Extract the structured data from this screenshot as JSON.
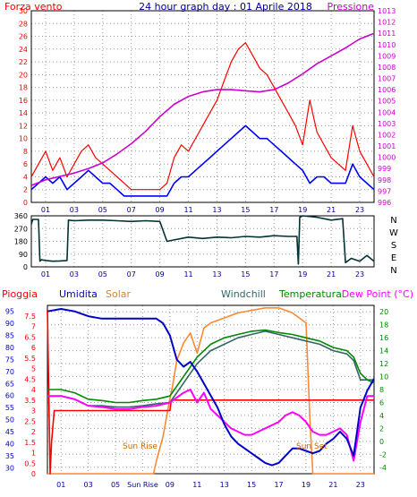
{
  "colors": {
    "frame": "#000000",
    "wind": "#ff0000",
    "wind_avg": "#0000ff",
    "pressure": "#cc00cc",
    "direction": "#003333",
    "rain": "#ff0000",
    "humidity": "#0000cc",
    "solar": "#ff8833",
    "windchill": "#336666",
    "temperature": "#008800",
    "dewpoint": "#ff00ff",
    "title": "#000099",
    "axis_text": "#000099"
  },
  "chart_data": [
    {
      "type": "line",
      "panel": "top",
      "title": "24 hour graph day : 01 Aprile 2018",
      "left_label": "Forza vento",
      "right_label": "Pressione",
      "x_ticks": [
        "01",
        "03",
        "05",
        "07",
        "09",
        "11",
        "13",
        "15",
        "17",
        "19",
        "21",
        "23"
      ],
      "x_range": [
        0,
        24
      ],
      "y_left_ticks": [
        "0",
        "2",
        "4",
        "6",
        "8",
        "10",
        "12",
        "14",
        "16",
        "18",
        "20",
        "22",
        "24",
        "26",
        "28",
        "30"
      ],
      "ylim_left": [
        0,
        30
      ],
      "y_right_ticks": [
        "996",
        "997",
        "998",
        "999",
        "1000",
        "1001",
        "1002",
        "1003",
        "1004",
        "1005",
        "1006",
        "1007",
        "1008",
        "1009",
        "1010",
        "1011",
        "1012",
        "1013"
      ],
      "ylim_right": [
        996,
        1013
      ],
      "grid": true,
      "series": [
        {
          "key": "wind",
          "x": [
            0,
            0.5,
            1,
            1.5,
            2,
            2.5,
            3,
            3.5,
            4,
            4.5,
            5,
            5.5,
            6,
            6.5,
            7,
            7.5,
            8,
            8.5,
            9,
            9.5,
            10,
            10.5,
            11,
            11.5,
            12,
            12.5,
            13,
            13.5,
            14,
            14.5,
            15,
            15.5,
            16,
            16.5,
            17,
            17.5,
            18,
            18.5,
            19,
            19.5,
            20,
            20.5,
            21,
            21.5,
            22,
            22.5,
            23,
            23.5,
            24
          ],
          "values": [
            4,
            6,
            8,
            5,
            7,
            4,
            6,
            8,
            9,
            7,
            6,
            5,
            4,
            3,
            2,
            2,
            2,
            2,
            2,
            3,
            7,
            9,
            8,
            10,
            12,
            14,
            16,
            19,
            22,
            24,
            25,
            23,
            21,
            20,
            18,
            16,
            14,
            12,
            9,
            16,
            11,
            9,
            7,
            6,
            5,
            12,
            8,
            6,
            4
          ]
        },
        {
          "key": "wind_avg",
          "x": [
            0,
            0.5,
            1,
            1.5,
            2,
            2.5,
            3,
            3.5,
            4,
            4.5,
            5,
            5.5,
            6,
            6.5,
            7,
            7.5,
            8,
            8.5,
            9,
            9.5,
            10,
            10.5,
            11,
            11.5,
            12,
            12.5,
            13,
            13.5,
            14,
            14.5,
            15,
            15.5,
            16,
            16.5,
            17,
            17.5,
            18,
            18.5,
            19,
            19.5,
            20,
            20.5,
            21,
            21.5,
            22,
            22.5,
            23,
            23.5,
            24
          ],
          "values": [
            2,
            3,
            4,
            3,
            4,
            2,
            3,
            4,
            5,
            4,
            3,
            3,
            2,
            1,
            1,
            1,
            1,
            1,
            1,
            1,
            3,
            4,
            4,
            5,
            6,
            7,
            8,
            9,
            10,
            11,
            12,
            11,
            10,
            10,
            9,
            8,
            7,
            6,
            5,
            3,
            4,
            4,
            3,
            3,
            3,
            6,
            4,
            3,
            2
          ]
        },
        {
          "key": "pressure",
          "x": [
            0,
            1,
            2,
            3,
            4,
            5,
            6,
            7,
            8,
            9,
            10,
            11,
            12,
            13,
            14,
            15,
            16,
            17,
            18,
            19,
            20,
            21,
            22,
            23,
            24
          ],
          "values": [
            997.5,
            998.0,
            998.3,
            998.6,
            999.0,
            999.5,
            1000.3,
            1001.2,
            1002.3,
            1003.6,
            1004.7,
            1005.4,
            1005.8,
            1006.0,
            1006.0,
            1005.9,
            1005.8,
            1006.0,
            1006.6,
            1007.4,
            1008.3,
            1009.0,
            1009.7,
            1010.5,
            1011.0
          ]
        }
      ]
    },
    {
      "type": "line",
      "panel": "direction",
      "x_ticks": [
        "01",
        "03",
        "05",
        "07",
        "09",
        "11",
        "13",
        "15",
        "17",
        "19",
        "21",
        "23"
      ],
      "x_range": [
        0,
        24
      ],
      "y_left_ticks": [
        "0",
        "90",
        "180",
        "270",
        "360"
      ],
      "ylim_left": [
        0,
        360
      ],
      "y_right_ticks": [
        "N",
        "W",
        "S",
        "E",
        "N"
      ],
      "grid": true,
      "series": [
        {
          "key": "direction",
          "x": [
            0,
            0.1,
            0.5,
            0.6,
            0.7,
            1.0,
            1.5,
            2.0,
            2.5,
            2.6,
            3.0,
            4.0,
            5.0,
            6.0,
            7.0,
            8.0,
            9.0,
            9.5,
            10.0,
            11.0,
            12.0,
            13.0,
            14.0,
            15.0,
            16.0,
            17.0,
            18.0,
            18.6,
            18.7,
            18.8,
            19.0,
            20.0,
            21.0,
            21.8,
            22.0,
            22.4,
            23.0,
            23.5,
            24.0
          ],
          "values": [
            300,
            335,
            335,
            40,
            50,
            45,
            40,
            42,
            45,
            330,
            325,
            330,
            330,
            325,
            320,
            325,
            320,
            180,
            190,
            210,
            200,
            210,
            205,
            215,
            210,
            220,
            215,
            215,
            20,
            350,
            360,
            350,
            330,
            340,
            30,
            60,
            40,
            80,
            40
          ]
        }
      ]
    },
    {
      "type": "line",
      "panel": "bottom",
      "labels": {
        "rain": "Pioggia",
        "humidity": "Umidita",
        "solar": "Solar",
        "windchill": "Windchill",
        "temperature": "Temperatura",
        "dewpoint": "Dew Point (°C)"
      },
      "annotations": [
        "Sun Rise",
        "Sun Set"
      ],
      "x_ticks": [
        "01",
        "03",
        "05",
        "Sun Rise",
        "09",
        "11",
        "13",
        "15",
        "17",
        "19",
        "21",
        "23"
      ],
      "x_range": [
        0,
        24
      ],
      "y_humidity_ticks": [
        "30",
        "35",
        "40",
        "45",
        "50",
        "55",
        "60",
        "65",
        "70",
        "75",
        "80",
        "85",
        "90",
        "95"
      ],
      "ylim_humidity": [
        27.5,
        97.5
      ],
      "y_rain_ticks": [
        "0",
        "0.5",
        "1",
        "1.5",
        "2",
        "2.5",
        "3",
        "3.5",
        "4",
        "4.5",
        "5",
        "5.5",
        "6",
        "6.5",
        "7",
        "7.5"
      ],
      "ylim_rain": [
        0,
        8
      ],
      "y_temp_ticks": [
        "-4",
        "-2",
        "0",
        "2",
        "4",
        "6",
        "8",
        "10",
        "12",
        "14",
        "16",
        "18",
        "20"
      ],
      "ylim_temp": [
        -5,
        21
      ],
      "grid": true,
      "series": [
        {
          "key": "rain",
          "x": [
            0,
            0.2,
            0.3,
            0.5,
            1.0,
            5.0,
            9.0,
            9.1,
            12.0,
            18.0,
            24.0
          ],
          "values": [
            7.8,
            0.0,
            1.5,
            3.0,
            3.0,
            3.0,
            3.0,
            3.5,
            3.5,
            3.5,
            3.5
          ]
        },
        {
          "key": "humidity",
          "x": [
            0,
            1,
            2,
            3,
            4,
            5,
            6,
            7,
            8,
            8.5,
            9,
            9.5,
            10,
            10.5,
            11,
            11.5,
            12,
            12.5,
            13,
            13.5,
            14,
            14.5,
            15,
            15.5,
            16,
            16.5,
            17,
            17.5,
            18,
            18.5,
            19,
            19.5,
            20,
            20.5,
            21,
            21.5,
            22,
            22.5,
            23,
            23.5,
            24
          ],
          "values": [
            95,
            96,
            95,
            93,
            92,
            92,
            92,
            92,
            92,
            90,
            85,
            75,
            72,
            74,
            70,
            65,
            60,
            55,
            48,
            43,
            40,
            38,
            36,
            34,
            32,
            31,
            32,
            35,
            38,
            38,
            37,
            36,
            37,
            40,
            42,
            45,
            42,
            35,
            55,
            62,
            67
          ]
        },
        {
          "key": "solar",
          "x": [
            0,
            7.8,
            8.0,
            8.5,
            9.0,
            9.2,
            9.5,
            10.0,
            10.5,
            11.0,
            11.5,
            12.0,
            13.0,
            14.0,
            15.0,
            16.0,
            17.0,
            18.0,
            19.0,
            19.3,
            19.5,
            24.0
          ],
          "values": [
            0,
            0,
            50,
            150,
            300,
            350,
            450,
            520,
            560,
            480,
            580,
            600,
            620,
            640,
            650,
            660,
            660,
            640,
            600,
            200,
            0,
            0
          ]
        },
        {
          "key": "windchill",
          "x": [
            0,
            1,
            2,
            3,
            4,
            5,
            6,
            7,
            8,
            9,
            10,
            11,
            12,
            13,
            14,
            15,
            16,
            17,
            18,
            19,
            20,
            21,
            22,
            22.5,
            23,
            23.5,
            24
          ],
          "values": [
            7.0,
            7.0,
            6.5,
            5.5,
            5.5,
            5.3,
            5.3,
            5.5,
            5.8,
            6.0,
            9.0,
            12.0,
            14.0,
            15.0,
            16.0,
            16.5,
            17.0,
            16.5,
            16.0,
            15.5,
            15.0,
            14.0,
            13.5,
            12.5,
            9.5,
            9.5,
            9.5
          ]
        },
        {
          "key": "temperature",
          "x": [
            0,
            1,
            2,
            3,
            4,
            5,
            6,
            7,
            8,
            9,
            10,
            11,
            12,
            13,
            14,
            15,
            16,
            17,
            18,
            19,
            20,
            21,
            22,
            22.5,
            23,
            23.5,
            24
          ],
          "values": [
            8.0,
            8.0,
            7.5,
            6.5,
            6.3,
            6.0,
            6.0,
            6.3,
            6.5,
            7.0,
            10.0,
            13.0,
            15.0,
            16.0,
            16.5,
            17.0,
            17.2,
            16.8,
            16.5,
            16.0,
            15.5,
            14.5,
            14.0,
            13.0,
            10.5,
            9.5,
            9.0
          ]
        },
        {
          "key": "dewpoint",
          "x": [
            0,
            1,
            2,
            3,
            4,
            5,
            6,
            7,
            8,
            9,
            10,
            10.5,
            11,
            11.5,
            12,
            12.5,
            13,
            13.5,
            14,
            14.5,
            15,
            15.5,
            16,
            16.5,
            17,
            17.5,
            18,
            18.5,
            19,
            19.5,
            20,
            20.5,
            21,
            21.5,
            22,
            22.5,
            23,
            23.5,
            24
          ],
          "values": [
            7.0,
            7.0,
            6.5,
            5.5,
            5.3,
            5.0,
            5.0,
            5.3,
            5.5,
            6.0,
            7.5,
            8.0,
            6.0,
            7.5,
            5.0,
            4.0,
            3.0,
            2.0,
            1.5,
            1.0,
            1.0,
            1.5,
            2.0,
            2.5,
            3.0,
            4.0,
            4.5,
            4.0,
            3.0,
            1.5,
            1.0,
            1.0,
            1.5,
            2.0,
            1.0,
            -3.0,
            3.0,
            7.0,
            7.0
          ]
        }
      ]
    }
  ]
}
